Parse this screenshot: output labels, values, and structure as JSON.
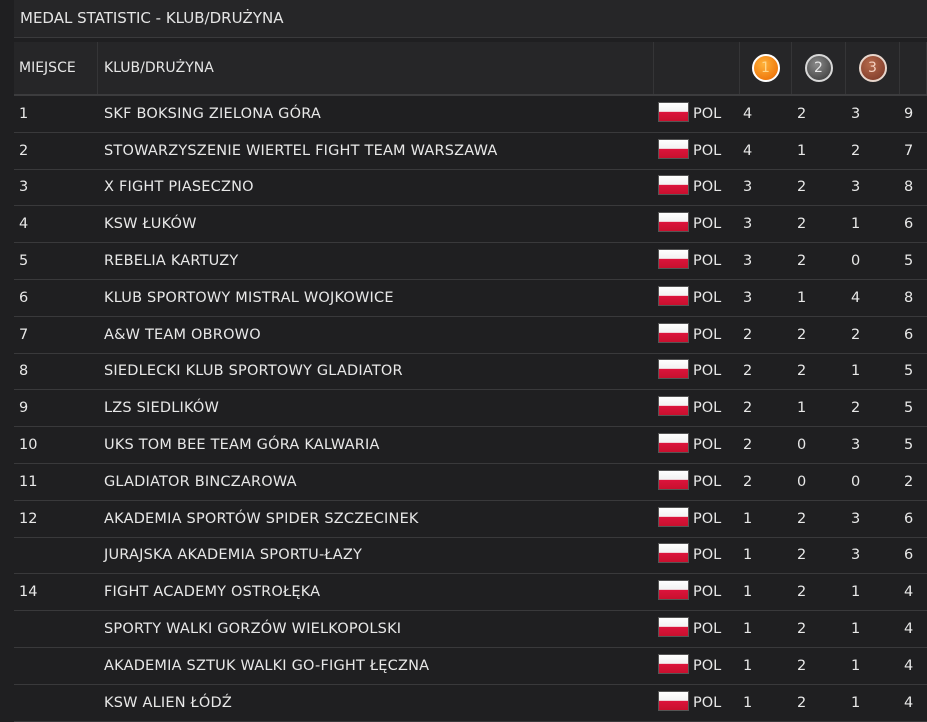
{
  "title": "MEDAL STATISTIC - KLUB/DRUŻYNA",
  "headers": {
    "place": "MIEJSCE",
    "club": "KLUB/DRUŻYNA",
    "gold": "1",
    "silver": "2",
    "bronze": "3"
  },
  "colors": {
    "gold": "#f07c10",
    "silver": "#4e4e4e",
    "bronze": "#8a4430",
    "flag_white": "#ffffff",
    "flag_red": "#dc143c"
  },
  "rows": [
    {
      "place": "1",
      "club": "SKF BOKSING ZIELONA GÓRA",
      "country": "POL",
      "gold": "4",
      "silver": "2",
      "bronze": "3",
      "total": "9"
    },
    {
      "place": "2",
      "club": "STOWARZYSZENIE WIERTEL FIGHT TEAM WARSZAWA",
      "country": "POL",
      "gold": "4",
      "silver": "1",
      "bronze": "2",
      "total": "7"
    },
    {
      "place": "3",
      "club": "X FIGHT PIASECZNO",
      "country": "POL",
      "gold": "3",
      "silver": "2",
      "bronze": "3",
      "total": "8"
    },
    {
      "place": "4",
      "club": "KSW ŁUKÓW",
      "country": "POL",
      "gold": "3",
      "silver": "2",
      "bronze": "1",
      "total": "6"
    },
    {
      "place": "5",
      "club": "REBELIA KARTUZY",
      "country": "POL",
      "gold": "3",
      "silver": "2",
      "bronze": "0",
      "total": "5"
    },
    {
      "place": "6",
      "club": "KLUB SPORTOWY MISTRAL WOJKOWICE",
      "country": "POL",
      "gold": "3",
      "silver": "1",
      "bronze": "4",
      "total": "8"
    },
    {
      "place": "7",
      "club": "A&W TEAM OBROWO",
      "country": "POL",
      "gold": "2",
      "silver": "2",
      "bronze": "2",
      "total": "6"
    },
    {
      "place": "8",
      "club": "SIEDLECKI KLUB SPORTOWY GLADIATOR",
      "country": "POL",
      "gold": "2",
      "silver": "2",
      "bronze": "1",
      "total": "5"
    },
    {
      "place": "9",
      "club": "LZS SIEDLIKÓW",
      "country": "POL",
      "gold": "2",
      "silver": "1",
      "bronze": "2",
      "total": "5"
    },
    {
      "place": "10",
      "club": "UKS TOM BEE TEAM GÓRA KALWARIA",
      "country": "POL",
      "gold": "2",
      "silver": "0",
      "bronze": "3",
      "total": "5"
    },
    {
      "place": "11",
      "club": "GLADIATOR BINCZAROWA",
      "country": "POL",
      "gold": "2",
      "silver": "0",
      "bronze": "0",
      "total": "2"
    },
    {
      "place": "12",
      "club": "AKADEMIA SPORTÓW SPIDER SZCZECINEK",
      "country": "POL",
      "gold": "1",
      "silver": "2",
      "bronze": "3",
      "total": "6"
    },
    {
      "place": "",
      "club": "JURAJSKA AKADEMIA SPORTU-ŁAZY",
      "country": "POL",
      "gold": "1",
      "silver": "2",
      "bronze": "3",
      "total": "6"
    },
    {
      "place": "14",
      "club": "FIGHT ACADEMY OSTROŁĘKA",
      "country": "POL",
      "gold": "1",
      "silver": "2",
      "bronze": "1",
      "total": "4"
    },
    {
      "place": "",
      "club": "SPORTY WALKI GORZÓW WIELKOPOLSKI",
      "country": "POL",
      "gold": "1",
      "silver": "2",
      "bronze": "1",
      "total": "4"
    },
    {
      "place": "",
      "club": "AKADEMIA SZTUK WALKI GO-FIGHT ŁĘCZNA",
      "country": "POL",
      "gold": "1",
      "silver": "2",
      "bronze": "1",
      "total": "4"
    },
    {
      "place": "",
      "club": "KSW ALIEN ŁÓDŹ",
      "country": "POL",
      "gold": "1",
      "silver": "2",
      "bronze": "1",
      "total": "4"
    }
  ]
}
